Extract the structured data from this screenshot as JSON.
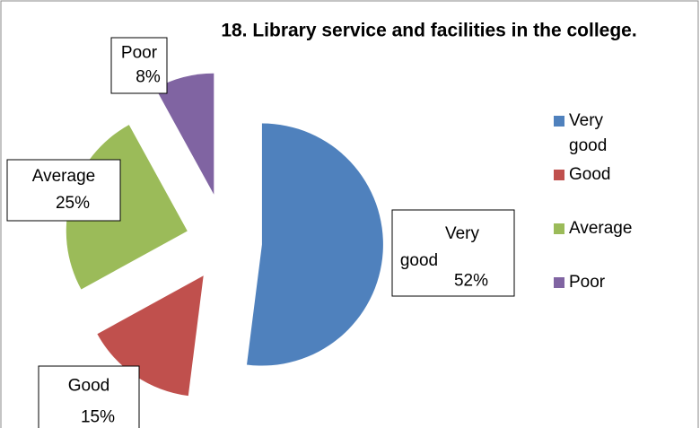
{
  "chart_data": {
    "type": "pie",
    "title": "18. Library service and facilities in the college.",
    "categories": [
      "Very good",
      "Good",
      "Average",
      "Poor"
    ],
    "values": [
      52,
      15,
      25,
      8
    ],
    "value_labels": [
      "52%",
      "15%",
      "25%",
      "8%"
    ],
    "colors": [
      "#4f81bd",
      "#c0504d",
      "#9bbb59",
      "#8064a2"
    ],
    "legend": "right"
  }
}
